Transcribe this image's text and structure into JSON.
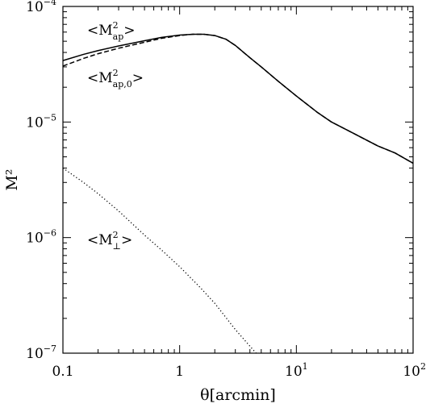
{
  "chart_data": {
    "type": "line",
    "xscale": "log",
    "yscale": "log",
    "xlim": [
      0.1,
      100
    ],
    "ylim": [
      1e-07,
      0.0001
    ],
    "xlabel": "θ[arcmin]",
    "ylabel": "M²",
    "grid": false,
    "x_ticks": [
      {
        "value": 0.1,
        "label": "0.1"
      },
      {
        "value": 1,
        "label": "1"
      },
      {
        "value": 10,
        "base": "10",
        "exp": "1"
      },
      {
        "value": 100,
        "base": "10",
        "exp": "2"
      }
    ],
    "y_ticks": [
      {
        "value": 0.0001,
        "base": "10",
        "exp": "−4"
      },
      {
        "value": 1e-05,
        "base": "10",
        "exp": "−5"
      },
      {
        "value": 1e-06,
        "base": "10",
        "exp": "−6"
      },
      {
        "value": 1e-07,
        "base": "10",
        "exp": "−7"
      }
    ],
    "series": [
      {
        "style": "solid",
        "x": [
          0.1,
          0.15,
          0.2,
          0.3,
          0.5,
          0.7,
          1.0,
          1.3,
          1.6,
          2.0,
          2.5,
          3.0,
          4.0,
          5.0,
          7.0,
          10,
          15,
          20,
          30,
          50,
          70,
          100
        ],
        "y": [
          3.4e-05,
          3.85e-05,
          4.15e-05,
          4.55e-05,
          5.05e-05,
          5.4e-05,
          5.65e-05,
          5.75e-05,
          5.75e-05,
          5.6e-05,
          5.2e-05,
          4.6e-05,
          3.6e-05,
          3e-05,
          2.25e-05,
          1.68e-05,
          1.22e-05,
          1e-05,
          8.1e-06,
          6.2e-06,
          5.4e-06,
          4.4e-06
        ]
      },
      {
        "style": "dashed",
        "x": [
          0.1,
          0.15,
          0.2,
          0.3,
          0.5,
          0.7,
          1.0,
          1.3,
          1.6,
          2.0,
          2.5,
          3.0,
          4.0,
          5.0,
          7.0,
          10,
          15,
          20,
          30,
          50,
          70,
          100
        ],
        "y": [
          3.05e-05,
          3.55e-05,
          3.9e-05,
          4.35e-05,
          4.9e-05,
          5.3e-05,
          5.6e-05,
          5.75e-05,
          5.75e-05,
          5.6e-05,
          5.2e-05,
          4.6e-05,
          3.6e-05,
          3e-05,
          2.25e-05,
          1.68e-05,
          1.22e-05,
          1e-05,
          8.1e-06,
          6.2e-06,
          5.4e-06,
          4.4e-06
        ]
      },
      {
        "style": "dotted",
        "x": [
          0.1,
          0.15,
          0.2,
          0.3,
          0.5,
          0.7,
          1.0,
          1.5,
          2.0,
          3.0,
          4.0,
          4.6
        ],
        "y": [
          4e-06,
          3e-06,
          2.4e-06,
          1.7e-06,
          1.05e-06,
          7.8e-07,
          5.6e-07,
          3.7e-07,
          2.7e-07,
          1.6e-07,
          1.15e-07,
          9.8e-08
        ]
      }
    ],
    "annotations": [
      {
        "base": "<M",
        "sup": "2",
        "sub": "ap",
        "close": ">"
      },
      {
        "base": "<M",
        "sup": "2",
        "sub": "ap,0",
        "close": ">"
      },
      {
        "base": "<M",
        "sup": "2",
        "sub": "⊥",
        "close": ">"
      }
    ]
  }
}
